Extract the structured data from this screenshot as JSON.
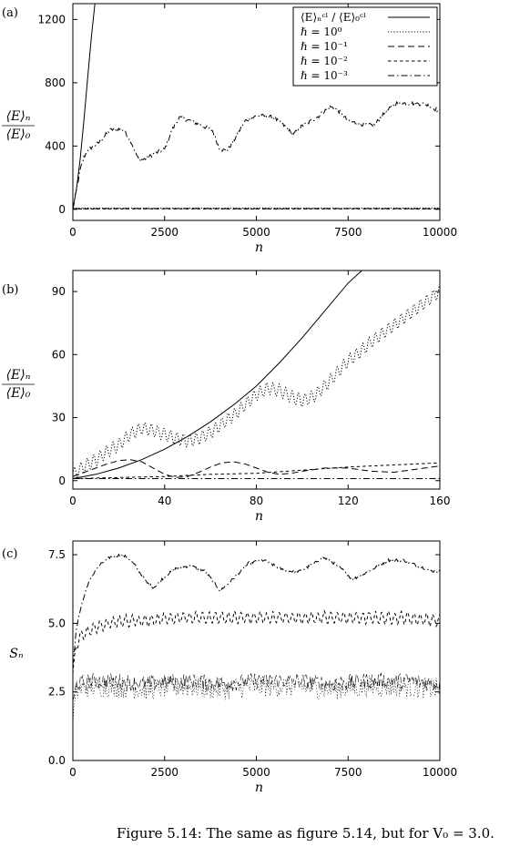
{
  "caption": "Figure 5.14: The same as figure 5.14, but for V₀ = 3.0.",
  "chart_data": [
    {
      "type": "line",
      "panel_label": "(a)",
      "xlabel": "n",
      "ylabel_num": "⟨E⟩ₙ",
      "ylabel_den": "⟨E⟩₀",
      "xlim": [
        0,
        10000
      ],
      "ylim": [
        -70,
        1300
      ],
      "xticks": [
        0,
        2500,
        5000,
        7500,
        10000
      ],
      "yticks": [
        0,
        400,
        800,
        1200
      ],
      "legend_position": "top-right",
      "legend": [
        {
          "label": "⟨E⟩ₙᶜˡ / ⟨E⟩₀ᶜˡ",
          "dash": "solid"
        },
        {
          "label": "ℏ = 10⁰",
          "dash": "dotted"
        },
        {
          "label": "ℏ = 10⁻¹",
          "dash": "long-dash"
        },
        {
          "label": "ℏ = 10⁻²",
          "dash": "short-dash"
        },
        {
          "label": "ℏ = 10⁻³",
          "dash": "dash-dot"
        }
      ],
      "series": [
        {
          "dash": "solid",
          "x": [
            0,
            100,
            200,
            300,
            400,
            500,
            600,
            650
          ],
          "y": [
            0,
            130,
            320,
            560,
            820,
            1080,
            1300,
            1300
          ]
        },
        {
          "dash": "dotted",
          "x": [
            0,
            2500,
            5000,
            7500,
            10000
          ],
          "y": [
            8,
            7,
            8,
            7,
            8
          ]
        },
        {
          "dash": "long-dash",
          "x": [
            0,
            2500,
            5000,
            7500,
            10000
          ],
          "y": [
            4,
            5,
            4,
            5,
            4
          ]
        },
        {
          "dash": "short-dash",
          "x": [
            0,
            2500,
            5000,
            7500,
            10000
          ],
          "y": [
            2,
            3,
            2,
            3,
            2
          ]
        },
        {
          "dash": "dash-dot",
          "noise": 12,
          "x": [
            0,
            100,
            200,
            300,
            400,
            500,
            700,
            1000,
            1200,
            1400,
            1600,
            1800,
            2000,
            2200,
            2500,
            2700,
            2900,
            3200,
            3500,
            3800,
            4000,
            4200,
            4400,
            4700,
            5000,
            5300,
            5500,
            5800,
            6000,
            6200,
            6400,
            6700,
            7000,
            7200,
            7500,
            7800,
            8200,
            8500,
            8800,
            9200,
            9600,
            10000
          ],
          "y": [
            0,
            120,
            250,
            330,
            370,
            390,
            420,
            500,
            510,
            500,
            420,
            310,
            320,
            350,
            380,
            500,
            580,
            560,
            530,
            500,
            380,
            370,
            440,
            560,
            590,
            590,
            575,
            520,
            470,
            520,
            545,
            590,
            650,
            630,
            560,
            540,
            530,
            610,
            670,
            670,
            665,
            620
          ]
        }
      ]
    },
    {
      "type": "line",
      "panel_label": "(b)",
      "xlabel": "n",
      "ylabel_num": "⟨E⟩ₙ",
      "ylabel_den": "⟨E⟩₀",
      "xlim": [
        0,
        160
      ],
      "ylim": [
        -4,
        100
      ],
      "xticks": [
        0,
        40,
        80,
        120,
        160
      ],
      "yticks": [
        0,
        30,
        60,
        90
      ],
      "series": [
        {
          "dash": "solid",
          "x": [
            0,
            10,
            20,
            30,
            40,
            50,
            60,
            70,
            80,
            90,
            100,
            110,
            120,
            126
          ],
          "y": [
            1,
            3,
            6,
            10,
            15,
            21,
            28,
            36,
            45,
            56,
            68,
            81,
            94,
            100
          ]
        },
        {
          "dash": "dotted",
          "osc": 3,
          "x": [
            0,
            5,
            10,
            15,
            20,
            25,
            30,
            35,
            40,
            45,
            50,
            55,
            60,
            65,
            70,
            75,
            80,
            85,
            90,
            95,
            100,
            105,
            110,
            115,
            120,
            125,
            130,
            135,
            140,
            145,
            150,
            155,
            160
          ],
          "y": [
            3,
            7,
            10,
            14,
            17,
            22,
            25,
            24,
            22,
            20,
            19,
            20,
            23,
            27,
            31,
            36,
            41,
            44,
            43,
            40,
            38,
            40,
            45,
            51,
            57,
            61,
            66,
            70,
            74,
            78,
            82,
            86,
            90
          ]
        },
        {
          "dash": "long-dash",
          "x": [
            0,
            5,
            10,
            15,
            20,
            25,
            30,
            35,
            40,
            45,
            50,
            55,
            60,
            65,
            70,
            75,
            80,
            85,
            90,
            95,
            100,
            110,
            120,
            130,
            140,
            150,
            160
          ],
          "y": [
            2,
            4,
            6,
            8,
            9.5,
            10,
            9,
            6,
            3,
            1.5,
            2,
            4,
            6.5,
            8.5,
            9,
            8,
            6,
            4,
            3,
            3.5,
            4.5,
            6,
            6,
            4.5,
            4,
            5.5,
            7
          ]
        },
        {
          "dash": "short-dash",
          "x": [
            0,
            20,
            40,
            60,
            80,
            100,
            120,
            140,
            160
          ],
          "y": [
            1,
            1.5,
            2,
            3,
            3.5,
            5,
            6.5,
            7.5,
            8.5
          ]
        },
        {
          "dash": "dash-dot",
          "x": [
            0,
            40,
            80,
            120,
            160
          ],
          "y": [
            1,
            1,
            1,
            1,
            1
          ]
        }
      ]
    },
    {
      "type": "line",
      "panel_label": "(c)",
      "xlabel": "n",
      "ylabel": "Sₙ",
      "xlim": [
        0,
        10000
      ],
      "ylim": [
        0,
        8
      ],
      "xticks": [
        0,
        2500,
        5000,
        7500,
        10000
      ],
      "yticks": [
        0.0,
        2.5,
        5.0,
        7.5
      ],
      "ytick_labels": [
        "0.0",
        "2.5",
        "5.0",
        "7.5"
      ],
      "series": [
        {
          "dash": "dash-dot",
          "noise": 0.05,
          "x": [
            0,
            100,
            200,
            400,
            600,
            800,
            1000,
            1300,
            1500,
            1700,
            1800,
            2000,
            2200,
            2500,
            2800,
            3200,
            3600,
            3900,
            4000,
            4200,
            4500,
            4800,
            5200,
            5500,
            5800,
            6200,
            6600,
            6800,
            7000,
            7400,
            7600,
            7800,
            8200,
            8600,
            9000,
            9400,
            9800,
            10000
          ],
          "y": [
            3.5,
            4.8,
            5.5,
            6.4,
            6.9,
            7.2,
            7.4,
            7.5,
            7.4,
            7.1,
            6.9,
            6.5,
            6.3,
            6.7,
            7.0,
            7.1,
            6.9,
            6.4,
            6.2,
            6.4,
            6.8,
            7.2,
            7.3,
            7.1,
            6.9,
            6.9,
            7.2,
            7.4,
            7.3,
            6.9,
            6.6,
            6.7,
            7.0,
            7.3,
            7.3,
            7.1,
            6.9,
            6.9
          ]
        },
        {
          "dash": "short-dash",
          "osc": 0.2,
          "noise": 0.05,
          "x": [
            0,
            100,
            200,
            400,
            700,
            1000,
            1500,
            2000,
            3000,
            4000,
            5000,
            6000,
            7000,
            8000,
            9000,
            10000
          ],
          "y": [
            3.2,
            4.2,
            4.5,
            4.7,
            4.9,
            5.0,
            5.1,
            5.1,
            5.2,
            5.2,
            5.2,
            5.2,
            5.2,
            5.2,
            5.2,
            5.1
          ]
        },
        {
          "dash": "dotted",
          "noise": 0.4,
          "x": [
            0,
            100,
            200,
            500,
            1000,
            2000,
            3000,
            4000,
            5000,
            6000,
            7000,
            8000,
            9000,
            10000
          ],
          "y": [
            1.5,
            2.5,
            2.6,
            2.7,
            2.7,
            2.6,
            2.7,
            2.6,
            2.7,
            2.7,
            2.6,
            2.7,
            2.7,
            2.6
          ]
        },
        {
          "dash": "long-dash",
          "noise": 0.3,
          "x": [
            0,
            100,
            500,
            1000,
            2000,
            3000,
            4000,
            5000,
            6000,
            7000,
            8000,
            9000,
            10000
          ],
          "y": [
            2.0,
            2.8,
            2.9,
            2.9,
            2.8,
            2.9,
            2.8,
            2.9,
            2.9,
            2.8,
            2.9,
            2.9,
            2.8
          ]
        }
      ]
    }
  ]
}
